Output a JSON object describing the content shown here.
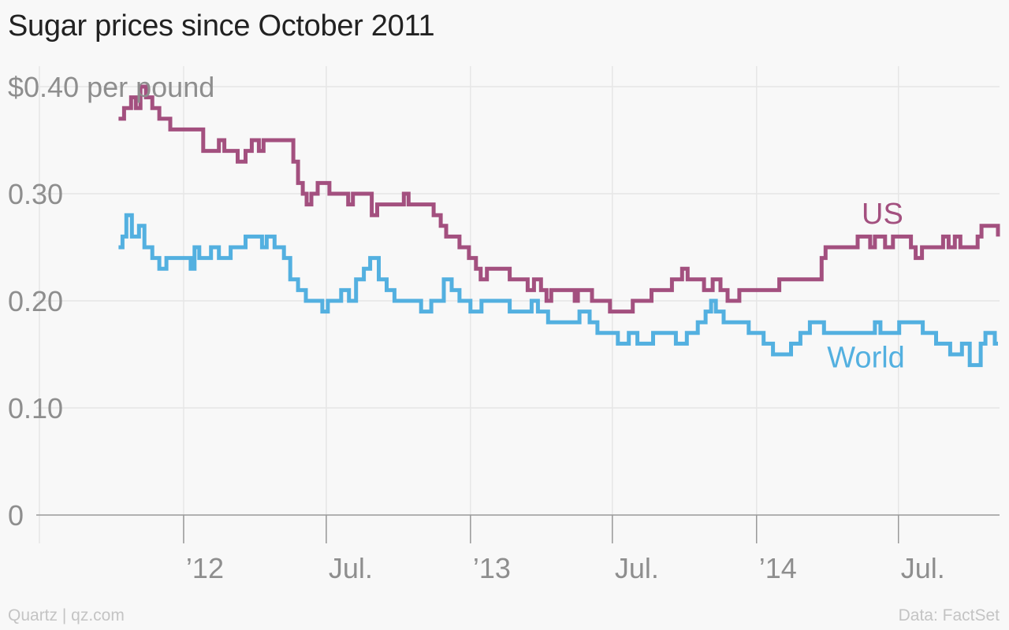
{
  "title": "Sugar prices since October 2011",
  "footer": {
    "source_left": "Quartz | qz.com",
    "source_right": "Data: FactSet"
  },
  "colors": {
    "us": "#a3507f",
    "world": "#53b0e0",
    "grid": "#e6e6e6",
    "axis": "#999999",
    "text": "#8e8e8e"
  },
  "chart_data": {
    "type": "line",
    "title": "Sugar prices since October 2011",
    "ylabel": "$0.40 per pound",
    "ylim": [
      0,
      0.4
    ],
    "xlim": [
      "2011-06-27",
      "2014-11-07"
    ],
    "y_ticks": [
      {
        "value": 0,
        "label": "0"
      },
      {
        "value": 0.1,
        "label": "0.10"
      },
      {
        "value": 0.2,
        "label": "0.20"
      },
      {
        "value": 0.3,
        "label": "0.30"
      },
      {
        "value": 0.4,
        "label": "$0.40 per pound"
      }
    ],
    "x_gridlines": [
      "2011-07-01",
      "2012-01-01",
      "2012-07-01",
      "2013-01-01",
      "2013-07-01",
      "2014-01-01",
      "2014-07-01",
      "2015-01-01"
    ],
    "x_ticks": [
      {
        "date": "2012-01-01",
        "label": "’12"
      },
      {
        "date": "2012-07-01",
        "label": "Jul."
      },
      {
        "date": "2013-01-01",
        "label": "’13"
      },
      {
        "date": "2013-07-01",
        "label": "Jul."
      },
      {
        "date": "2014-01-01",
        "label": "’14"
      },
      {
        "date": "2014-07-01",
        "label": "Jul."
      }
    ],
    "grid": true,
    "series": [
      {
        "name": "US",
        "color": "#a3507f",
        "points": [
          [
            "2011-10-10",
            0.37
          ],
          [
            "2011-10-17",
            0.38
          ],
          [
            "2011-10-26",
            0.39
          ],
          [
            "2011-11-01",
            0.38
          ],
          [
            "2011-11-07",
            0.4
          ],
          [
            "2011-11-14",
            0.39
          ],
          [
            "2011-11-22",
            0.38
          ],
          [
            "2011-12-01",
            0.37
          ],
          [
            "2011-12-15",
            0.36
          ],
          [
            "2012-01-20",
            0.36
          ],
          [
            "2012-01-26",
            0.34
          ],
          [
            "2012-02-15",
            0.35
          ],
          [
            "2012-02-22",
            0.34
          ],
          [
            "2012-03-10",
            0.33
          ],
          [
            "2012-03-20",
            0.34
          ],
          [
            "2012-03-28",
            0.35
          ],
          [
            "2012-04-06",
            0.34
          ],
          [
            "2012-04-12",
            0.35
          ],
          [
            "2012-05-12",
            0.35
          ],
          [
            "2012-05-20",
            0.33
          ],
          [
            "2012-05-26",
            0.31
          ],
          [
            "2012-06-01",
            0.3
          ],
          [
            "2012-06-06",
            0.29
          ],
          [
            "2012-06-12",
            0.3
          ],
          [
            "2012-06-20",
            0.31
          ],
          [
            "2012-07-05",
            0.3
          ],
          [
            "2012-07-25",
            0.3
          ],
          [
            "2012-07-29",
            0.29
          ],
          [
            "2012-08-04",
            0.3
          ],
          [
            "2012-08-20",
            0.3
          ],
          [
            "2012-08-28",
            0.28
          ],
          [
            "2012-09-04",
            0.29
          ],
          [
            "2012-10-04",
            0.29
          ],
          [
            "2012-10-08",
            0.3
          ],
          [
            "2012-10-14",
            0.29
          ],
          [
            "2012-11-06",
            0.29
          ],
          [
            "2012-11-15",
            0.28
          ],
          [
            "2012-11-24",
            0.27
          ],
          [
            "2012-12-01",
            0.26
          ],
          [
            "2012-12-18",
            0.25
          ],
          [
            "2012-12-30",
            0.24
          ],
          [
            "2013-01-08",
            0.23
          ],
          [
            "2013-01-14",
            0.22
          ],
          [
            "2013-01-22",
            0.23
          ],
          [
            "2013-02-15",
            0.23
          ],
          [
            "2013-02-20",
            0.22
          ],
          [
            "2013-03-04",
            0.22
          ],
          [
            "2013-03-15",
            0.21
          ],
          [
            "2013-03-23",
            0.22
          ],
          [
            "2013-04-01",
            0.21
          ],
          [
            "2013-04-08",
            0.2
          ],
          [
            "2013-04-14",
            0.21
          ],
          [
            "2013-05-10",
            0.21
          ],
          [
            "2013-05-14",
            0.2
          ],
          [
            "2013-05-18",
            0.21
          ],
          [
            "2013-06-05",
            0.2
          ],
          [
            "2013-06-20",
            0.2
          ],
          [
            "2013-06-28",
            0.19
          ],
          [
            "2013-07-20",
            0.19
          ],
          [
            "2013-07-27",
            0.2
          ],
          [
            "2013-08-10",
            0.2
          ],
          [
            "2013-08-20",
            0.21
          ],
          [
            "2013-09-10",
            0.21
          ],
          [
            "2013-09-15",
            0.22
          ],
          [
            "2013-09-28",
            0.23
          ],
          [
            "2013-10-05",
            0.22
          ],
          [
            "2013-10-20",
            0.22
          ],
          [
            "2013-10-26",
            0.21
          ],
          [
            "2013-11-06",
            0.22
          ],
          [
            "2013-11-16",
            0.21
          ],
          [
            "2013-11-25",
            0.2
          ],
          [
            "2013-12-05",
            0.2
          ],
          [
            "2013-12-10",
            0.21
          ],
          [
            "2014-01-22",
            0.21
          ],
          [
            "2014-01-30",
            0.22
          ],
          [
            "2014-03-15",
            0.22
          ],
          [
            "2014-03-25",
            0.24
          ],
          [
            "2014-03-30",
            0.25
          ],
          [
            "2014-05-01",
            0.25
          ],
          [
            "2014-05-10",
            0.26
          ],
          [
            "2014-05-26",
            0.25
          ],
          [
            "2014-06-01",
            0.26
          ],
          [
            "2014-06-14",
            0.25
          ],
          [
            "2014-06-24",
            0.26
          ],
          [
            "2014-07-12",
            0.26
          ],
          [
            "2014-07-17",
            0.25
          ],
          [
            "2014-07-23",
            0.24
          ],
          [
            "2014-07-31",
            0.25
          ],
          [
            "2014-08-20",
            0.25
          ],
          [
            "2014-08-27",
            0.26
          ],
          [
            "2014-09-03",
            0.25
          ],
          [
            "2014-09-11",
            0.26
          ],
          [
            "2014-09-18",
            0.25
          ],
          [
            "2014-10-10",
            0.26
          ],
          [
            "2014-10-15",
            0.27
          ],
          [
            "2014-11-01",
            0.27
          ],
          [
            "2014-11-05",
            0.26
          ]
        ]
      },
      {
        "name": "World",
        "color": "#53b0e0",
        "points": [
          [
            "2011-10-10",
            0.25
          ],
          [
            "2011-10-15",
            0.26
          ],
          [
            "2011-10-20",
            0.28
          ],
          [
            "2011-10-27",
            0.26
          ],
          [
            "2011-11-05",
            0.27
          ],
          [
            "2011-11-12",
            0.25
          ],
          [
            "2011-11-22",
            0.24
          ],
          [
            "2011-12-01",
            0.23
          ],
          [
            "2011-12-10",
            0.24
          ],
          [
            "2012-01-10",
            0.23
          ],
          [
            "2012-01-15",
            0.25
          ],
          [
            "2012-01-21",
            0.24
          ],
          [
            "2012-02-05",
            0.25
          ],
          [
            "2012-02-15",
            0.24
          ],
          [
            "2012-03-01",
            0.25
          ],
          [
            "2012-03-20",
            0.26
          ],
          [
            "2012-04-10",
            0.25
          ],
          [
            "2012-04-16",
            0.26
          ],
          [
            "2012-04-26",
            0.25
          ],
          [
            "2012-05-08",
            0.24
          ],
          [
            "2012-05-16",
            0.22
          ],
          [
            "2012-05-26",
            0.21
          ],
          [
            "2012-06-05",
            0.2
          ],
          [
            "2012-06-26",
            0.19
          ],
          [
            "2012-07-03",
            0.2
          ],
          [
            "2012-07-20",
            0.21
          ],
          [
            "2012-07-30",
            0.2
          ],
          [
            "2012-08-08",
            0.22
          ],
          [
            "2012-08-18",
            0.23
          ],
          [
            "2012-08-26",
            0.24
          ],
          [
            "2012-09-06",
            0.22
          ],
          [
            "2012-09-16",
            0.21
          ],
          [
            "2012-09-26",
            0.2
          ],
          [
            "2012-10-30",
            0.19
          ],
          [
            "2012-11-12",
            0.2
          ],
          [
            "2012-11-28",
            0.22
          ],
          [
            "2012-12-08",
            0.21
          ],
          [
            "2012-12-18",
            0.2
          ],
          [
            "2013-01-01",
            0.19
          ],
          [
            "2013-01-15",
            0.2
          ],
          [
            "2013-02-20",
            0.19
          ],
          [
            "2013-03-20",
            0.2
          ],
          [
            "2013-03-28",
            0.19
          ],
          [
            "2013-04-10",
            0.18
          ],
          [
            "2013-05-20",
            0.19
          ],
          [
            "2013-06-02",
            0.18
          ],
          [
            "2013-06-12",
            0.17
          ],
          [
            "2013-07-01",
            0.17
          ],
          [
            "2013-07-08",
            0.16
          ],
          [
            "2013-07-22",
            0.17
          ],
          [
            "2013-08-02",
            0.16
          ],
          [
            "2013-08-22",
            0.17
          ],
          [
            "2013-09-20",
            0.16
          ],
          [
            "2013-10-04",
            0.17
          ],
          [
            "2013-10-18",
            0.18
          ],
          [
            "2013-10-28",
            0.19
          ],
          [
            "2013-11-04",
            0.2
          ],
          [
            "2013-11-10",
            0.19
          ],
          [
            "2013-11-20",
            0.18
          ],
          [
            "2013-12-22",
            0.17
          ],
          [
            "2014-01-10",
            0.16
          ],
          [
            "2014-01-22",
            0.15
          ],
          [
            "2014-02-14",
            0.16
          ],
          [
            "2014-02-26",
            0.17
          ],
          [
            "2014-03-10",
            0.18
          ],
          [
            "2014-03-28",
            0.17
          ],
          [
            "2014-06-01",
            0.18
          ],
          [
            "2014-06-08",
            0.17
          ],
          [
            "2014-07-02",
            0.18
          ],
          [
            "2014-08-01",
            0.17
          ],
          [
            "2014-08-18",
            0.16
          ],
          [
            "2014-09-05",
            0.15
          ],
          [
            "2014-09-20",
            0.16
          ],
          [
            "2014-09-30",
            0.14
          ],
          [
            "2014-10-14",
            0.16
          ],
          [
            "2014-10-20",
            0.17
          ],
          [
            "2014-11-01",
            0.16
          ],
          [
            "2014-11-05",
            0.16
          ]
        ]
      }
    ]
  }
}
